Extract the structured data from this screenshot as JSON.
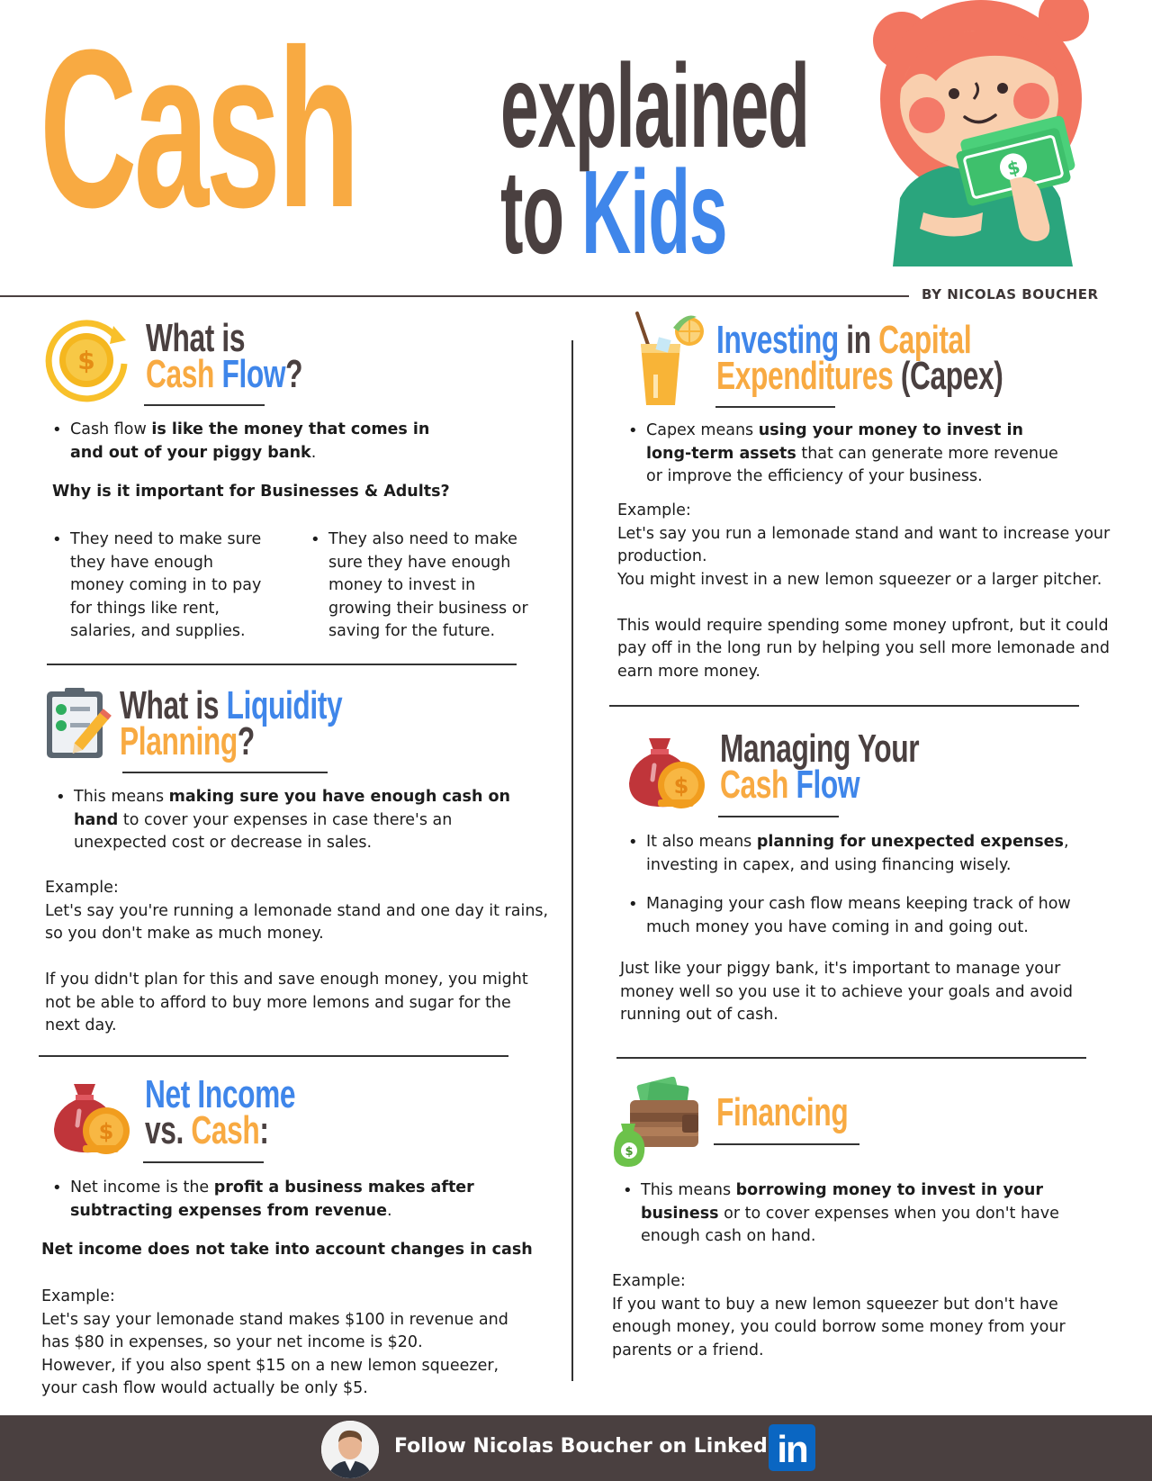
{
  "header": {
    "title_cash": "Cash",
    "title_explained": "explained",
    "title_to": "to",
    "title_kids": "Kids",
    "byline": "BY NICOLAS BOUCHER"
  },
  "cash_flow": {
    "title_line1": "What is",
    "title_cash": "Cash",
    "title_flow": "Flow",
    "title_q": "?",
    "bullet_plain": "Cash flow ",
    "bullet_bold": "is like the money that comes in and out of your piggy bank",
    "bullet_end": ".",
    "question": "Why is it important for Businesses & Adults?",
    "point_left": "They need to make sure they have enough money coming in to pay for things like rent, salaries, and supplies.",
    "point_right": "They also need to make sure they have enough money to invest in growing their business or saving for the future."
  },
  "liquidity": {
    "title_what": "What is ",
    "title_liquidity": "Liquidity",
    "title_planning": "Planning",
    "title_q": "?",
    "bullet_plain": "This means ",
    "bullet_bold": "making sure you have enough cash on hand",
    "bullet_end": " to cover your expenses in case there's an unexpected cost or decrease in sales.",
    "example_label": "Example:",
    "example_p1": "Let's say you're running a lemonade stand and one day it rains, so you don't make as much money.",
    "example_p2": "If you didn't plan for this and save enough money, you might not be able to afford to buy more lemons and sugar for the next day."
  },
  "net_income": {
    "title_net": "Net Income",
    "title_vs": "vs. ",
    "title_cash": "Cash",
    "title_colon": ":",
    "bullet_plain": "Net income is the ",
    "bullet_bold": "profit a business makes after subtracting expenses from revenue",
    "bullet_end": ".",
    "note": "Net income does not take into account changes in cash",
    "example_label": "Example:",
    "example_l1": "Let's say your lemonade stand makes $100 in revenue and has $80 in expenses, so your net income is $20.",
    "example_l2": "However, if you also spent $15 on a new lemon squeezer, your cash flow would actually be only $5."
  },
  "capex": {
    "title_investing": "Investing",
    "title_in": " in ",
    "title_capital": "Capital",
    "title_expenditures": "Expenditures",
    "title_capex": " (Capex)",
    "bullet_plain": "Capex means ",
    "bullet_bold": "using your money to invest in long-term assets",
    "bullet_end": " that can generate more revenue or improve the efficiency of your business.",
    "example_label": "Example:",
    "example_l1": "Let's say you run a lemonade stand and want to increase your production.",
    "example_l2": "You might invest in a new lemon squeezer or a larger pitcher.",
    "example_p2": "This would require spending some money upfront, but it could pay off in the long run by helping you sell more lemonade and earn more money."
  },
  "managing": {
    "title_line1": "Managing Your",
    "title_cash": "Cash",
    "title_flow": "Flow",
    "b1_plain": "It also means ",
    "b1_bold": "planning for unexpected expenses",
    "b1_end": ", investing in capex, and using financing wisely.",
    "b2": "Managing your cash flow means keeping track of how much money you have coming in and going out.",
    "closing": "Just like your piggy bank, it's important to manage your money well so you use it to achieve your goals and avoid running out of cash."
  },
  "financing": {
    "title": "Financing",
    "bullet_plain": "This means ",
    "bullet_bold": "borrowing money to invest in your business",
    "bullet_end": " or to cover expenses when you don't have enough cash on hand.",
    "example_label": "Example:",
    "example_text": "If you want to buy a new lemon squeezer but don't have enough money, you could borrow some money from your parents or a friend."
  },
  "footer": {
    "text": "Follow Nicolas Boucher on LinkedIn",
    "linkedin_logo": "in"
  },
  "colors": {
    "orange": "#f8aa42",
    "blue": "#3f86ea",
    "dark": "#4a4040",
    "linkedin": "#0a66c2"
  }
}
